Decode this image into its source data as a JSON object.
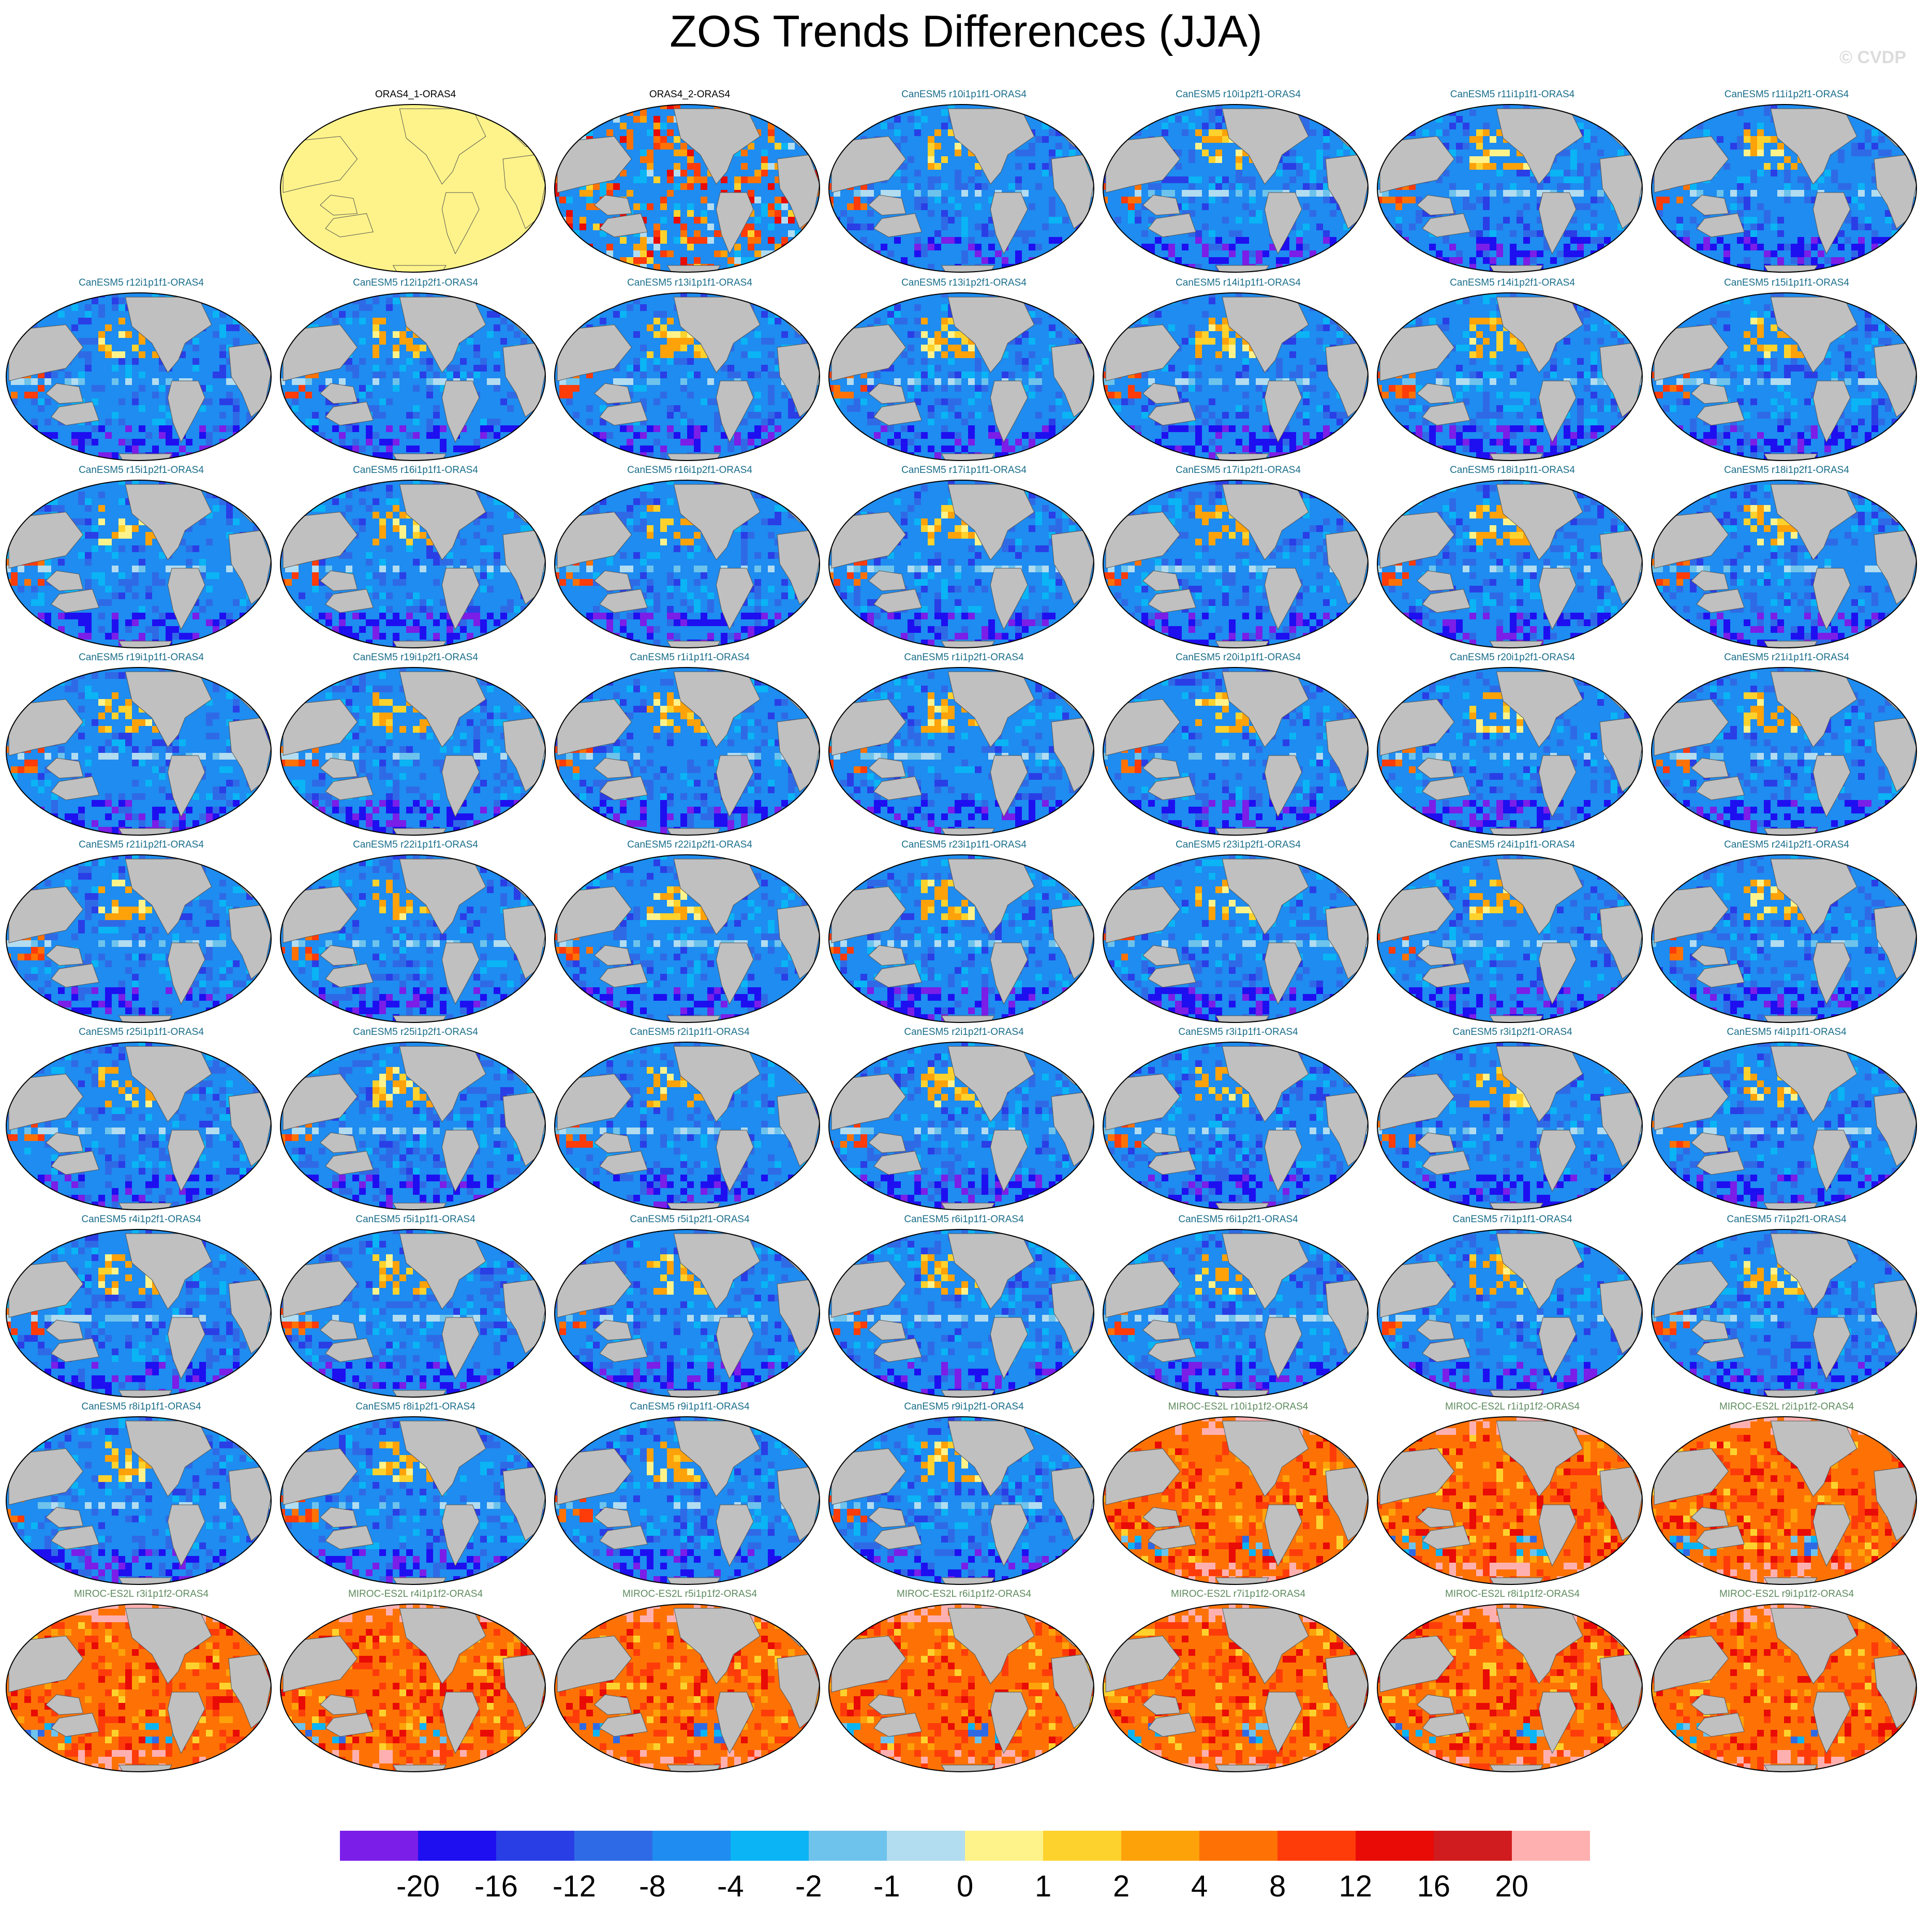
{
  "title": "ZOS Trends Differences (JJA)",
  "credit": "© CVDP",
  "model_colors": {
    "ORAS4": "#000000",
    "CanESM5": "#1a6e8a",
    "MIROC-ES2L": "#5e8b5e"
  },
  "panels": [
    {
      "label": "ORAS4_1-ORAS4",
      "model": "ORAS4",
      "pattern": "zero"
    },
    {
      "label": "ORAS4_2-ORAS4",
      "model": "ORAS4",
      "pattern": "mixed"
    },
    {
      "label": "CanESM5 r10i1p1f1-ORAS4",
      "model": "CanESM5",
      "pattern": "neg"
    },
    {
      "label": "CanESM5 r10i1p2f1-ORAS4",
      "model": "CanESM5",
      "pattern": "neg"
    },
    {
      "label": "CanESM5 r11i1p1f1-ORAS4",
      "model": "CanESM5",
      "pattern": "neg"
    },
    {
      "label": "CanESM5 r11i1p2f1-ORAS4",
      "model": "CanESM5",
      "pattern": "neg"
    },
    {
      "label": "CanESM5 r12i1p1f1-ORAS4",
      "model": "CanESM5",
      "pattern": "neg"
    },
    {
      "label": "CanESM5 r12i1p2f1-ORAS4",
      "model": "CanESM5",
      "pattern": "neg"
    },
    {
      "label": "CanESM5 r13i1p1f1-ORAS4",
      "model": "CanESM5",
      "pattern": "neg"
    },
    {
      "label": "CanESM5 r13i1p2f1-ORAS4",
      "model": "CanESM5",
      "pattern": "neg"
    },
    {
      "label": "CanESM5 r14i1p1f1-ORAS4",
      "model": "CanESM5",
      "pattern": "neg"
    },
    {
      "label": "CanESM5 r14i1p2f1-ORAS4",
      "model": "CanESM5",
      "pattern": "neg"
    },
    {
      "label": "CanESM5 r15i1p1f1-ORAS4",
      "model": "CanESM5",
      "pattern": "neg"
    },
    {
      "label": "CanESM5 r15i1p2f1-ORAS4",
      "model": "CanESM5",
      "pattern": "neg"
    },
    {
      "label": "CanESM5 r16i1p1f1-ORAS4",
      "model": "CanESM5",
      "pattern": "neg"
    },
    {
      "label": "CanESM5 r16i1p2f1-ORAS4",
      "model": "CanESM5",
      "pattern": "neg"
    },
    {
      "label": "CanESM5 r17i1p1f1-ORAS4",
      "model": "CanESM5",
      "pattern": "neg"
    },
    {
      "label": "CanESM5 r17i1p2f1-ORAS4",
      "model": "CanESM5",
      "pattern": "neg"
    },
    {
      "label": "CanESM5 r18i1p1f1-ORAS4",
      "model": "CanESM5",
      "pattern": "neg"
    },
    {
      "label": "CanESM5 r18i1p2f1-ORAS4",
      "model": "CanESM5",
      "pattern": "neg"
    },
    {
      "label": "CanESM5 r19i1p1f1-ORAS4",
      "model": "CanESM5",
      "pattern": "neg"
    },
    {
      "label": "CanESM5 r19i1p2f1-ORAS4",
      "model": "CanESM5",
      "pattern": "neg"
    },
    {
      "label": "CanESM5 r1i1p1f1-ORAS4",
      "model": "CanESM5",
      "pattern": "neg"
    },
    {
      "label": "CanESM5 r1i1p2f1-ORAS4",
      "model": "CanESM5",
      "pattern": "neg"
    },
    {
      "label": "CanESM5 r20i1p1f1-ORAS4",
      "model": "CanESM5",
      "pattern": "neg"
    },
    {
      "label": "CanESM5 r20i1p2f1-ORAS4",
      "model": "CanESM5",
      "pattern": "neg"
    },
    {
      "label": "CanESM5 r21i1p1f1-ORAS4",
      "model": "CanESM5",
      "pattern": "neg"
    },
    {
      "label": "CanESM5 r21i1p2f1-ORAS4",
      "model": "CanESM5",
      "pattern": "neg"
    },
    {
      "label": "CanESM5 r22i1p1f1-ORAS4",
      "model": "CanESM5",
      "pattern": "neg"
    },
    {
      "label": "CanESM5 r22i1p2f1-ORAS4",
      "model": "CanESM5",
      "pattern": "neg"
    },
    {
      "label": "CanESM5 r23i1p1f1-ORAS4",
      "model": "CanESM5",
      "pattern": "neg"
    },
    {
      "label": "CanESM5 r23i1p2f1-ORAS4",
      "model": "CanESM5",
      "pattern": "neg"
    },
    {
      "label": "CanESM5 r24i1p1f1-ORAS4",
      "model": "CanESM5",
      "pattern": "neg"
    },
    {
      "label": "CanESM5 r24i1p2f1-ORAS4",
      "model": "CanESM5",
      "pattern": "neg"
    },
    {
      "label": "CanESM5 r25i1p1f1-ORAS4",
      "model": "CanESM5",
      "pattern": "neg"
    },
    {
      "label": "CanESM5 r25i1p2f1-ORAS4",
      "model": "CanESM5",
      "pattern": "neg"
    },
    {
      "label": "CanESM5 r2i1p1f1-ORAS4",
      "model": "CanESM5",
      "pattern": "neg"
    },
    {
      "label": "CanESM5 r2i1p2f1-ORAS4",
      "model": "CanESM5",
      "pattern": "neg"
    },
    {
      "label": "CanESM5 r3i1p1f1-ORAS4",
      "model": "CanESM5",
      "pattern": "neg"
    },
    {
      "label": "CanESM5 r3i1p2f1-ORAS4",
      "model": "CanESM5",
      "pattern": "neg"
    },
    {
      "label": "CanESM5 r4i1p1f1-ORAS4",
      "model": "CanESM5",
      "pattern": "neg"
    },
    {
      "label": "CanESM5 r4i1p2f1-ORAS4",
      "model": "CanESM5",
      "pattern": "neg"
    },
    {
      "label": "CanESM5 r5i1p1f1-ORAS4",
      "model": "CanESM5",
      "pattern": "neg"
    },
    {
      "label": "CanESM5 r5i1p2f1-ORAS4",
      "model": "CanESM5",
      "pattern": "neg"
    },
    {
      "label": "CanESM5 r6i1p1f1-ORAS4",
      "model": "CanESM5",
      "pattern": "neg"
    },
    {
      "label": "CanESM5 r6i1p2f1-ORAS4",
      "model": "CanESM5",
      "pattern": "neg"
    },
    {
      "label": "CanESM5 r7i1p1f1-ORAS4",
      "model": "CanESM5",
      "pattern": "neg"
    },
    {
      "label": "CanESM5 r7i1p2f1-ORAS4",
      "model": "CanESM5",
      "pattern": "neg"
    },
    {
      "label": "CanESM5 r8i1p1f1-ORAS4",
      "model": "CanESM5",
      "pattern": "neg"
    },
    {
      "label": "CanESM5 r8i1p2f1-ORAS4",
      "model": "CanESM5",
      "pattern": "neg"
    },
    {
      "label": "CanESM5 r9i1p1f1-ORAS4",
      "model": "CanESM5",
      "pattern": "neg"
    },
    {
      "label": "CanESM5 r9i1p2f1-ORAS4",
      "model": "CanESM5",
      "pattern": "neg"
    },
    {
      "label": "MIROC-ES2L r10i1p1f2-ORAS4",
      "model": "MIROC-ES2L",
      "pattern": "pos"
    },
    {
      "label": "MIROC-ES2L r1i1p1f2-ORAS4",
      "model": "MIROC-ES2L",
      "pattern": "pos"
    },
    {
      "label": "MIROC-ES2L r2i1p1f2-ORAS4",
      "model": "MIROC-ES2L",
      "pattern": "pos"
    },
    {
      "label": "MIROC-ES2L r3i1p1f2-ORAS4",
      "model": "MIROC-ES2L",
      "pattern": "pos"
    },
    {
      "label": "MIROC-ES2L r4i1p1f2-ORAS4",
      "model": "MIROC-ES2L",
      "pattern": "pos"
    },
    {
      "label": "MIROC-ES2L r5i1p1f2-ORAS4",
      "model": "MIROC-ES2L",
      "pattern": "pos"
    },
    {
      "label": "MIROC-ES2L r6i1p1f2-ORAS4",
      "model": "MIROC-ES2L",
      "pattern": "pos"
    },
    {
      "label": "MIROC-ES2L r7i1p1f2-ORAS4",
      "model": "MIROC-ES2L",
      "pattern": "pos"
    },
    {
      "label": "MIROC-ES2L r8i1p1f2-ORAS4",
      "model": "MIROC-ES2L",
      "pattern": "pos"
    },
    {
      "label": "MIROC-ES2L r9i1p1f2-ORAS4",
      "model": "MIROC-ES2L",
      "pattern": "pos"
    }
  ],
  "colorbar": {
    "colors": [
      "#7a1ee8",
      "#1e0ff0",
      "#2a3ee6",
      "#2f6ae6",
      "#1e8cf0",
      "#0ab4f5",
      "#6ec3ec",
      "#b2dcf0",
      "#fef38a",
      "#fed22d",
      "#fea20a",
      "#fe7205",
      "#fe3c0a",
      "#e90b06",
      "#d01c1e",
      "#feb0b0"
    ],
    "labels": [
      "-20",
      "-16",
      "-12",
      "-8",
      "-4",
      "-2",
      "-1",
      "0",
      "1",
      "2",
      "4",
      "8",
      "12",
      "16",
      "20"
    ]
  },
  "land_color": "#c0c0c0"
}
